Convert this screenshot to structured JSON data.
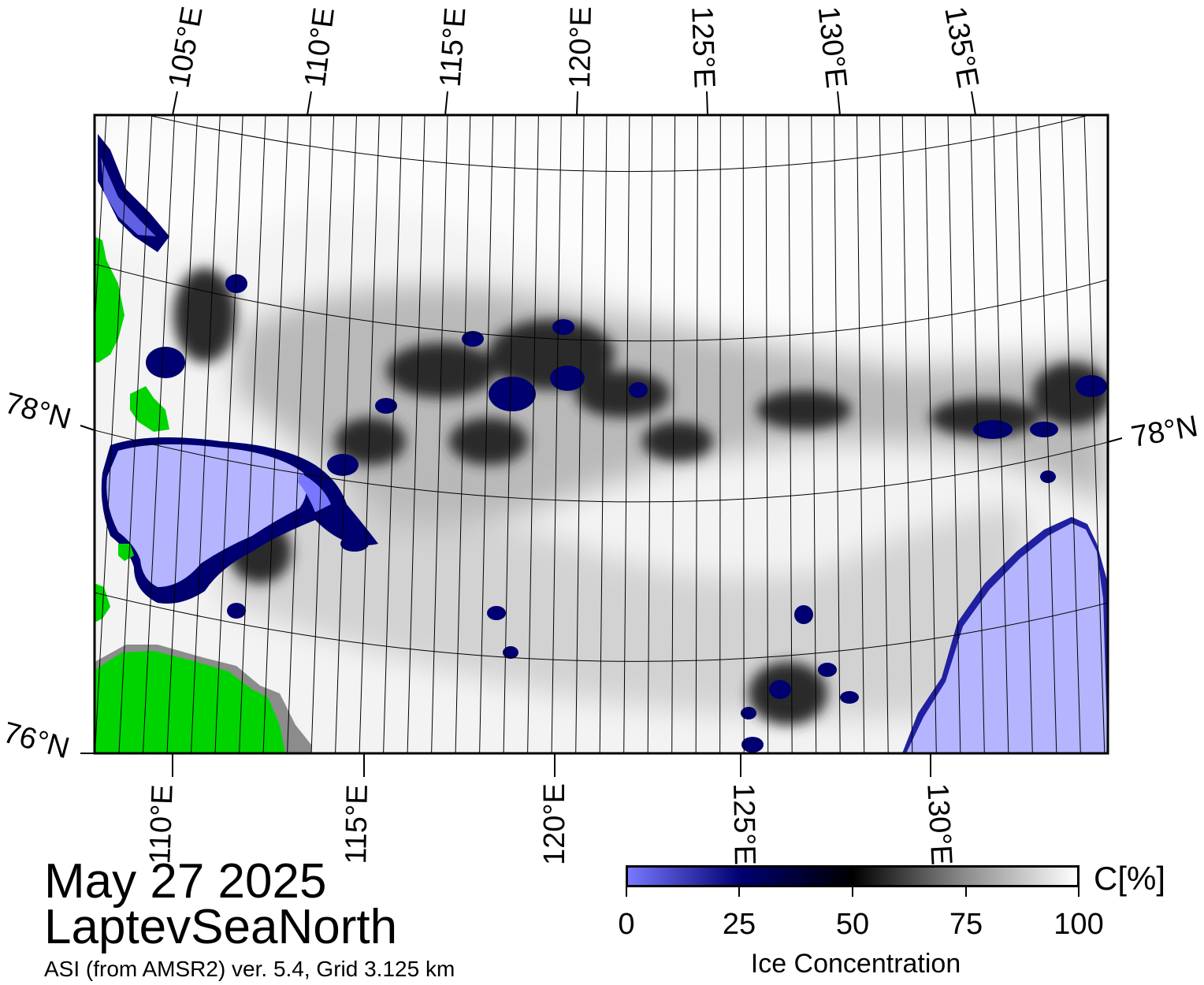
{
  "map": {
    "date": "May 27 2025",
    "region": "LaptevSeaNorth",
    "credit": "ASI (from AMSR2) ver. 5.4,  Grid 3.125 km",
    "top_lon_labels": [
      "105°E",
      "110°E",
      "115°E",
      "120°E",
      "125°E",
      "130°E",
      "135°E"
    ],
    "bottom_lon_labels": [
      "110°E",
      "115°E",
      "120°E",
      "125°E",
      "130°E"
    ],
    "lat_labels": {
      "left_78": "78°N",
      "right_78": "78°N",
      "left_76": "76°N"
    },
    "colors": {
      "land": "#00d400",
      "open_water": "#b4b4ff",
      "coast_mask": "#8c8c8c",
      "frame": "#000000"
    }
  },
  "colorbar": {
    "title": "Ice Concentration",
    "unit": "C[%]",
    "ticks": [
      "0",
      "25",
      "50",
      "75",
      "100"
    ],
    "tick_values": [
      0,
      25,
      50,
      75,
      100
    ],
    "stops": [
      "#7878ff",
      "#000070",
      "#000000",
      "#8c8c8c",
      "#ffffff"
    ]
  }
}
